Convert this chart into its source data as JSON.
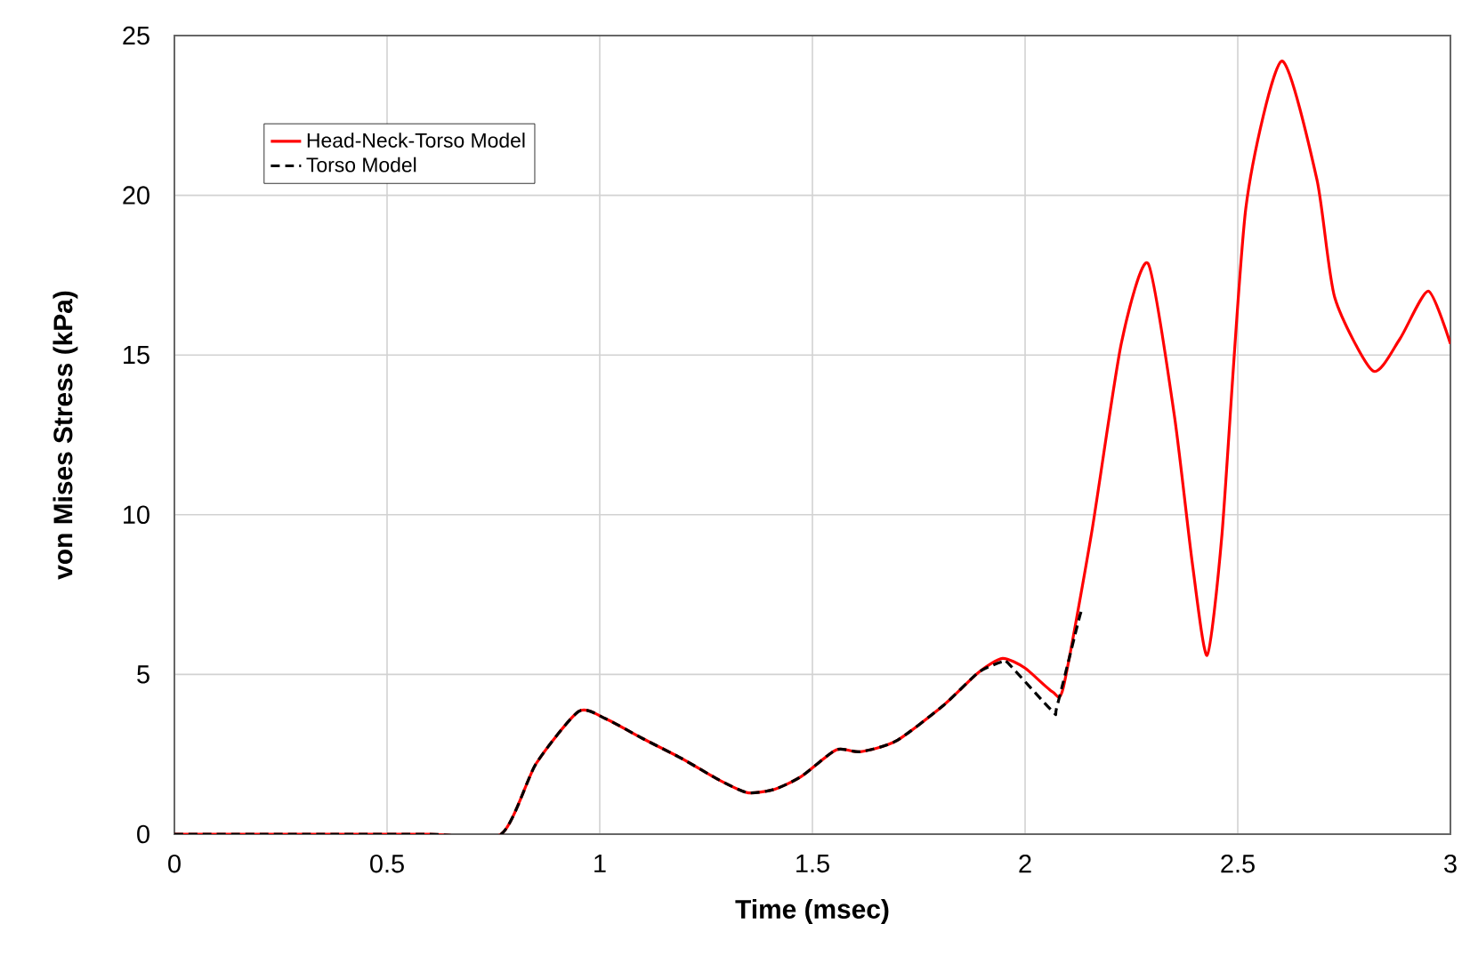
{
  "chart_data": {
    "type": "line",
    "xlabel": "Time (msec)",
    "ylabel": "von Mises Stress (kPa)",
    "xlim": [
      0,
      3
    ],
    "ylim": [
      0,
      25
    ],
    "xticks": [
      0,
      0.5,
      1,
      1.5,
      2,
      2.5,
      3
    ],
    "yticks": [
      0,
      5,
      10,
      15,
      20,
      25
    ],
    "grid": true,
    "legend": "top left",
    "marker": "none",
    "series": [
      {
        "name": "Head-Neck-Torso Model",
        "color": "#ff0000",
        "line_style": "solid",
        "x": [
          0,
          0.3,
          0.6,
          0.768,
          0.85,
          0.95,
          1.013,
          1.1,
          1.194,
          1.28,
          1.347,
          1.41,
          1.473,
          1.556,
          1.612,
          1.696,
          1.808,
          1.891,
          1.947,
          2.0,
          2.065,
          2.09,
          2.156,
          2.226,
          2.289,
          2.351,
          2.393,
          2.428,
          2.463,
          2.519,
          2.603,
          2.686,
          2.728,
          2.818,
          2.881,
          2.948,
          3.0
        ],
        "values": [
          0,
          0,
          0,
          0,
          2.2,
          3.84,
          3.62,
          3.0,
          2.36,
          1.7,
          1.3,
          1.4,
          1.8,
          2.64,
          2.58,
          2.91,
          4.03,
          5.07,
          5.5,
          5.2,
          4.45,
          4.6,
          9.4,
          15.35,
          17.87,
          13.1,
          8.5,
          5.6,
          9.4,
          19.6,
          24.2,
          20.5,
          16.8,
          14.5,
          15.5,
          17.0,
          15.35
        ]
      },
      {
        "name": "Torso Model",
        "color": "#000000",
        "line_style": "dashed",
        "x": [
          0,
          0.3,
          0.6,
          0.768,
          0.85,
          0.95,
          1.013,
          1.1,
          1.194,
          1.28,
          1.347,
          1.41,
          1.473,
          1.556,
          1.612,
          1.696,
          1.808,
          1.891,
          1.947,
          1.961,
          2.065,
          2.075,
          2.128,
          2.135
        ],
        "values": [
          0,
          0,
          0,
          0,
          2.2,
          3.84,
          3.62,
          3.0,
          2.36,
          1.7,
          1.3,
          1.4,
          1.8,
          2.64,
          2.58,
          2.91,
          4.03,
          5.07,
          5.4,
          5.34,
          3.84,
          4.0,
          6.8,
          7.0
        ]
      }
    ]
  }
}
